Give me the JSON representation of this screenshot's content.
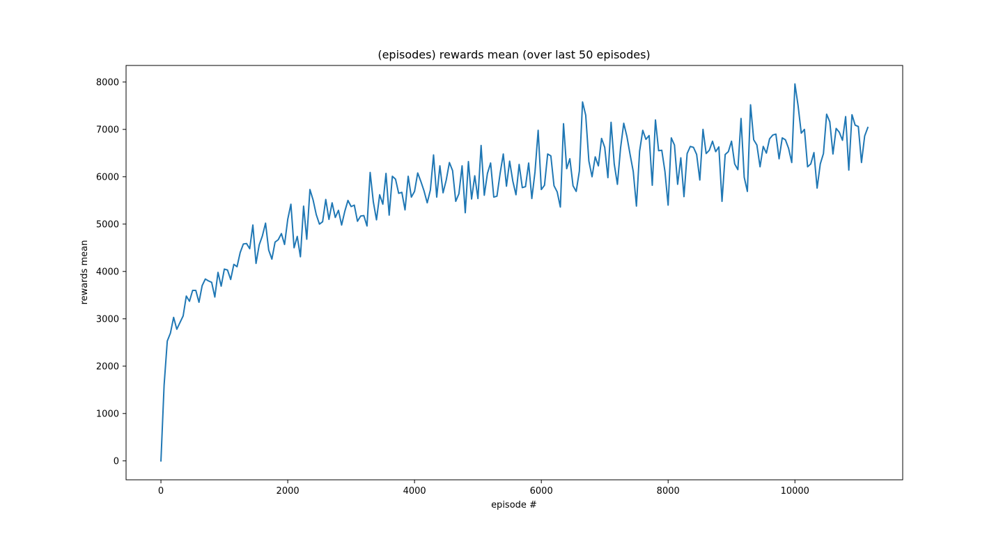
{
  "chart_data": {
    "type": "line",
    "title": "(episodes) rewards mean (over last 50 episodes)",
    "xlabel": "episode #",
    "ylabel": "rewards mean",
    "xlim": [
      -550,
      11700
    ],
    "ylim": [
      -400,
      8350
    ],
    "xticks": [
      0,
      2000,
      4000,
      6000,
      8000,
      10000
    ],
    "yticks": [
      0,
      1000,
      2000,
      3000,
      4000,
      5000,
      6000,
      7000,
      8000
    ],
    "grid": false,
    "legend": "none",
    "line_color": "#1f77b4",
    "series": [
      {
        "x": [
          0,
          50,
          100,
          150,
          200,
          250,
          300,
          350,
          400,
          450,
          500,
          550,
          600,
          650,
          700,
          750,
          800,
          850,
          900,
          950,
          1000,
          1050,
          1100,
          1150,
          1200,
          1250,
          1300,
          1350,
          1400,
          1450,
          1500,
          1550,
          1600,
          1650,
          1700,
          1750,
          1800,
          1850,
          1900,
          1950,
          2000,
          2050,
          2100,
          2150,
          2200,
          2250,
          2300,
          2350,
          2400,
          2450,
          2500,
          2550,
          2600,
          2650,
          2700,
          2750,
          2800,
          2850,
          2900,
          2950,
          3000,
          3050,
          3100,
          3150,
          3200,
          3250,
          3300,
          3350,
          3400,
          3450,
          3500,
          3550,
          3600,
          3650,
          3700,
          3750,
          3800,
          3850,
          3900,
          3950,
          4000,
          4050,
          4100,
          4150,
          4200,
          4250,
          4300,
          4350,
          4400,
          4450,
          4500,
          4550,
          4600,
          4650,
          4700,
          4750,
          4800,
          4850,
          4900,
          4950,
          5000,
          5050,
          5100,
          5150,
          5200,
          5250,
          5300,
          5350,
          5400,
          5450,
          5500,
          5550,
          5600,
          5650,
          5700,
          5750,
          5800,
          5850,
          5900,
          5950,
          6000,
          6050,
          6100,
          6150,
          6200,
          6250,
          6300,
          6350,
          6400,
          6450,
          6500,
          6550,
          6600,
          6650,
          6700,
          6750,
          6800,
          6850,
          6900,
          6950,
          7000,
          7050,
          7100,
          7150,
          7200,
          7250,
          7300,
          7350,
          7400,
          7450,
          7500,
          7550,
          7600,
          7650,
          7700,
          7750,
          7800,
          7850,
          7900,
          7950,
          8000,
          8050,
          8100,
          8150,
          8200,
          8250,
          8300,
          8350,
          8400,
          8450,
          8500,
          8550,
          8600,
          8650,
          8700,
          8750,
          8800,
          8850,
          8900,
          8950,
          9000,
          9050,
          9100,
          9150,
          9200,
          9250,
          9300,
          9350,
          9400,
          9450,
          9500,
          9550,
          9600,
          9650,
          9700,
          9750,
          9800,
          9850,
          9900,
          9950,
          10000,
          10050,
          10100,
          10150,
          10200,
          10250,
          10300,
          10350,
          10400,
          10450,
          10500,
          10550,
          10600,
          10650,
          10700,
          10750,
          10800,
          10850,
          10900,
          10950,
          11000,
          11050,
          11100,
          11150
        ],
        "y": [
          0,
          1600,
          2530,
          2700,
          3030,
          2780,
          2920,
          3060,
          3480,
          3370,
          3600,
          3600,
          3350,
          3700,
          3840,
          3800,
          3770,
          3460,
          3980,
          3690,
          4050,
          4030,
          3830,
          4150,
          4100,
          4400,
          4580,
          4590,
          4480,
          4980,
          4170,
          4560,
          4750,
          5020,
          4450,
          4260,
          4620,
          4670,
          4800,
          4570,
          5100,
          5420,
          4500,
          4740,
          4310,
          5380,
          4680,
          5730,
          5510,
          5200,
          5000,
          5050,
          5520,
          5100,
          5450,
          5140,
          5290,
          4980,
          5270,
          5500,
          5370,
          5400,
          5060,
          5170,
          5180,
          4960,
          6090,
          5470,
          5090,
          5620,
          5420,
          6070,
          5190,
          6010,
          5950,
          5650,
          5670,
          5300,
          6010,
          5570,
          5690,
          6080,
          5900,
          5700,
          5450,
          5720,
          6460,
          5570,
          6230,
          5660,
          5930,
          6300,
          6130,
          5480,
          5640,
          6230,
          5240,
          6320,
          5530,
          6020,
          5540,
          6660,
          5610,
          6070,
          6290,
          5570,
          5590,
          6070,
          6480,
          5800,
          6330,
          5910,
          5620,
          6260,
          5770,
          5790,
          6290,
          5540,
          6100,
          6980,
          5730,
          5820,
          6480,
          6440,
          5810,
          5680,
          5360,
          7120,
          6170,
          6380,
          5810,
          5690,
          6120,
          7580,
          7300,
          6330,
          6000,
          6420,
          6230,
          6810,
          6620,
          5980,
          7150,
          6270,
          5840,
          6610,
          7130,
          6850,
          6470,
          6110,
          5380,
          6540,
          6980,
          6790,
          6870,
          5820,
          7200,
          6550,
          6560,
          6110,
          5400,
          6820,
          6670,
          5840,
          6400,
          5580,
          6490,
          6640,
          6620,
          6470,
          5930,
          7000,
          6490,
          6560,
          6750,
          6530,
          6630,
          5480,
          6470,
          6530,
          6750,
          6270,
          6150,
          7230,
          5990,
          5690,
          7520,
          6780,
          6670,
          6210,
          6640,
          6500,
          6800,
          6880,
          6900,
          6380,
          6820,
          6780,
          6600,
          6300,
          7960,
          7500,
          6920,
          7000,
          6210,
          6270,
          6510,
          5760,
          6270,
          6490,
          7320,
          7160,
          6480,
          7020,
          6940,
          6770,
          7270,
          6140,
          7310,
          7090,
          7060,
          6300,
          6860,
          7040
        ]
      }
    ]
  }
}
